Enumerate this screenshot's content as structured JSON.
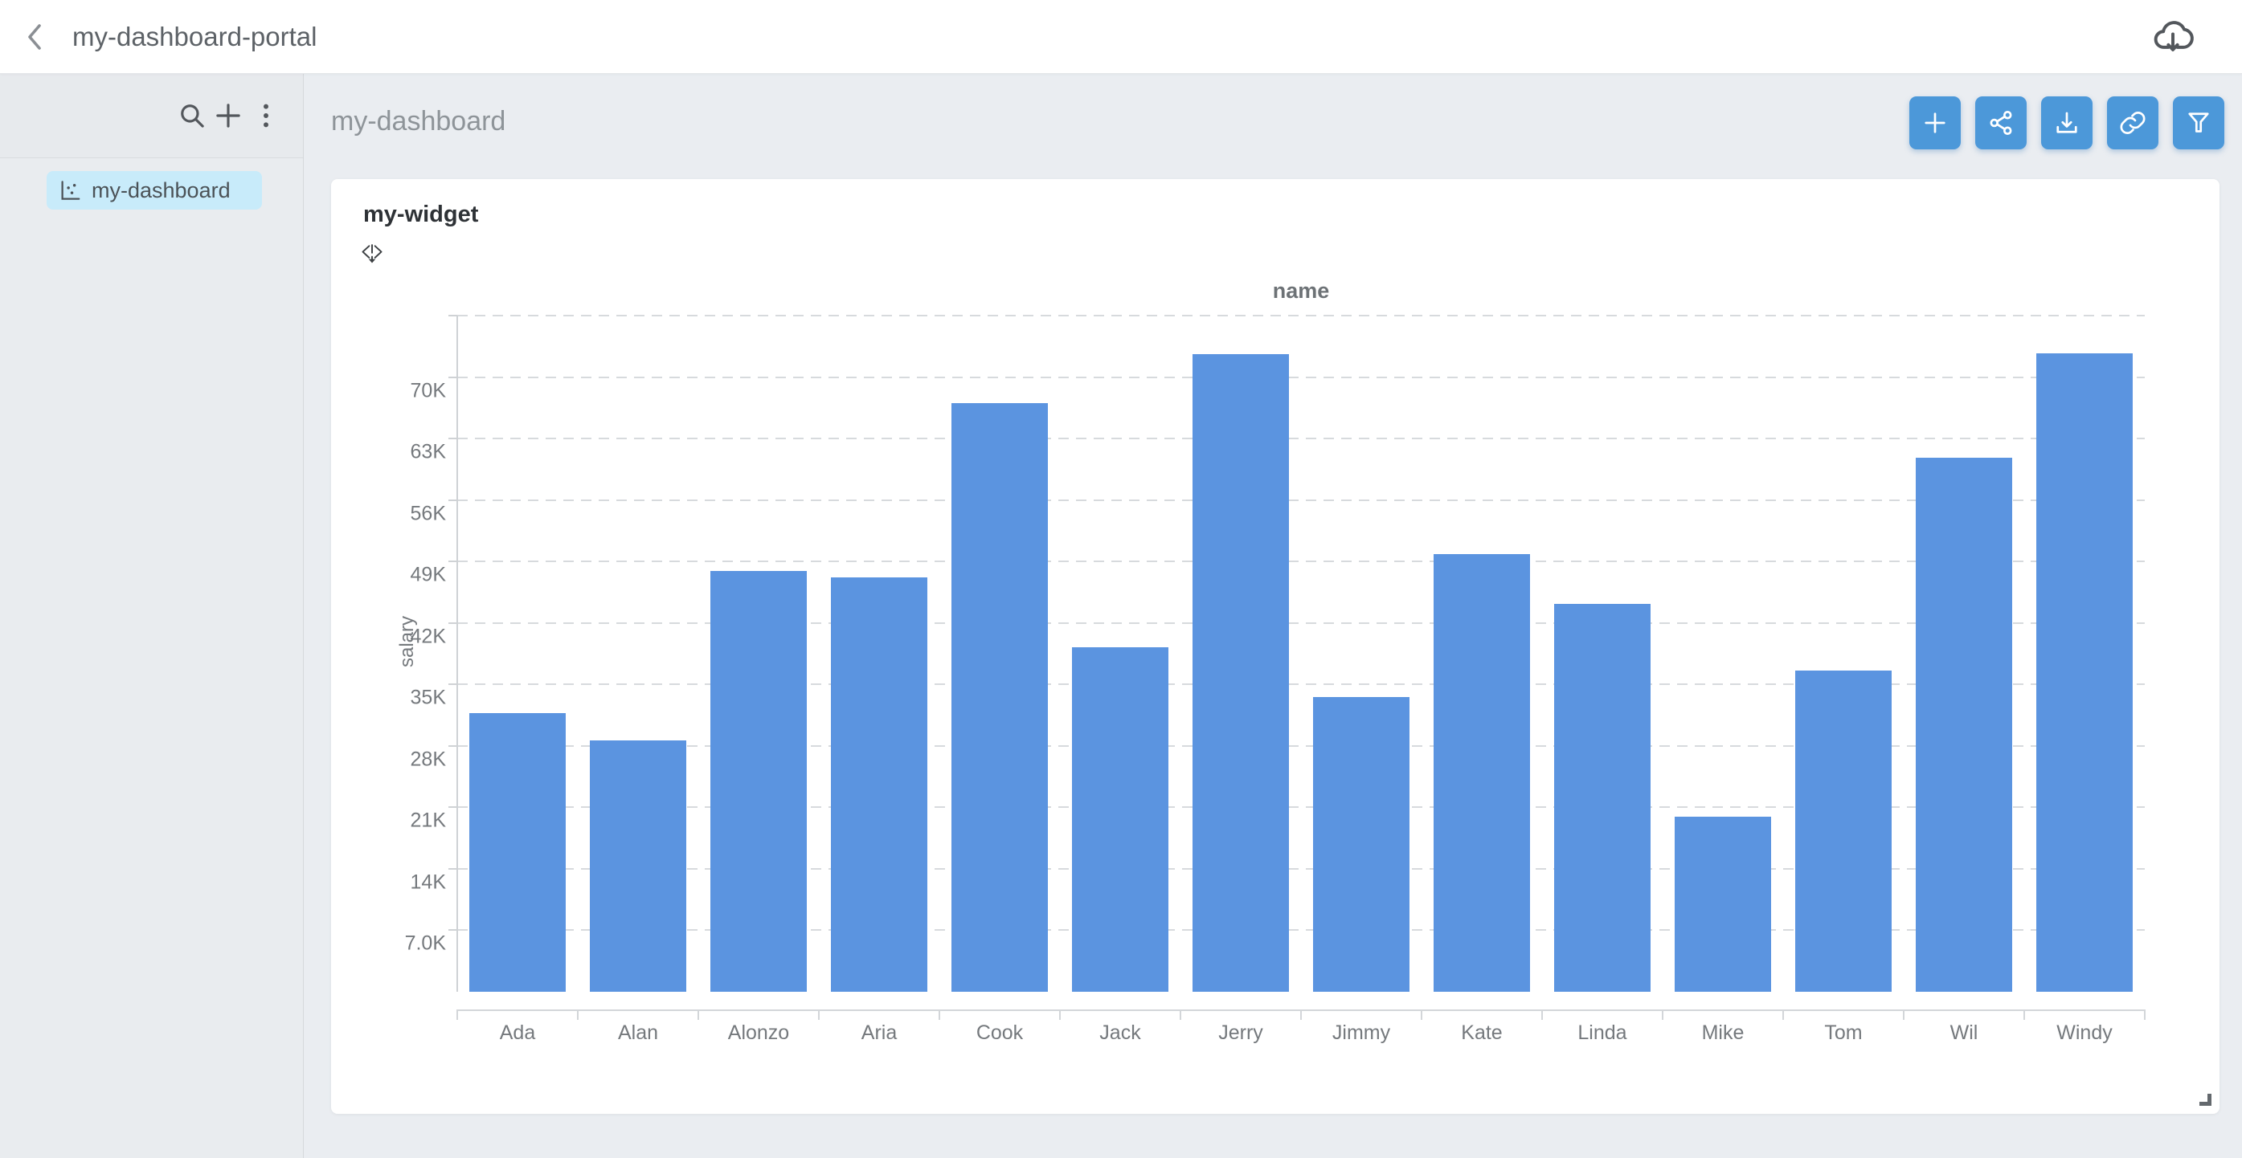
{
  "top_bar": {
    "title": "my-dashboard-portal"
  },
  "sidebar": {
    "items": [
      {
        "label": "my-dashboard",
        "selected": true,
        "icon": "chart-icon"
      }
    ]
  },
  "main": {
    "title": "my-dashboard",
    "toolbar_icons": [
      "plus-icon",
      "share-icon",
      "download-icon",
      "link-icon",
      "filter-icon"
    ]
  },
  "widget": {
    "title": "my-widget"
  },
  "chart_data": {
    "type": "bar",
    "title": "name",
    "xlabel": "name",
    "ylabel": "salary",
    "categories": [
      "Ada",
      "Alan",
      "Alonzo",
      "Aria",
      "Cook",
      "Jack",
      "Jerry",
      "Jimmy",
      "Kate",
      "Linda",
      "Mike",
      "Tom",
      "Wil",
      "Windy"
    ],
    "values": [
      31700,
      28600,
      47900,
      47200,
      67000,
      39200,
      72600,
      33600,
      49800,
      44200,
      19900,
      36600,
      60800,
      72700
    ],
    "ylim": [
      0,
      77000
    ],
    "y_tick_step": 7000,
    "y_tick_labels": [
      "7.0K",
      "14K",
      "21K",
      "28K",
      "35K",
      "42K",
      "49K",
      "56K",
      "63K",
      "70K"
    ],
    "grid": "horizontal-dashed",
    "legend": "none",
    "bar_color": "#5b94e0"
  },
  "colors": {
    "accent_button": "#4c98d9",
    "bar": "#5b94e0",
    "sidebar_selected_bg": "#c8ebfa",
    "page_bg": "#eaedf1",
    "card_bg": "#ffffff"
  }
}
